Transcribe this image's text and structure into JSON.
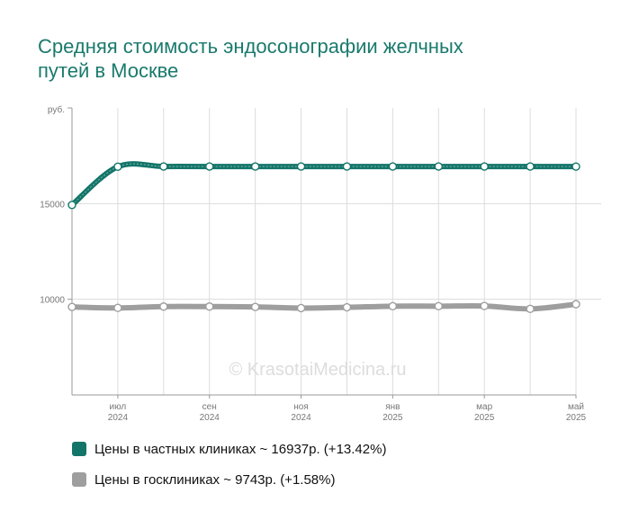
{
  "header": {
    "title_line1": "Средняя стоимость эндосонографии желчных",
    "title_line2": "путей в Москве"
  },
  "watermark": "© KrasotaiMedicina.ru",
  "colors": {
    "private": "#137569",
    "public": "#9e9e9e",
    "title": "#1a7a6d"
  },
  "legend": [
    {
      "label": "Цены в частных клиниках ~ 16937р. (+13.42%)",
      "color": "#137569"
    },
    {
      "label": "Цены в госклиниках ~ 9743р. (+1.58%)",
      "color": "#9e9e9e"
    }
  ],
  "chart_data": {
    "type": "line",
    "ylabel": "руб.",
    "ylim": [
      5000,
      20000
    ],
    "yticks": [
      15000,
      10000
    ],
    "grid": true,
    "x": [
      "2024-06",
      "2024-07",
      "2024-08",
      "2024-09",
      "2024-10",
      "2024-11",
      "2024-12",
      "2025-01",
      "2025-02",
      "2025-03",
      "2025-04",
      "2025-05"
    ],
    "xtick_labels": [
      {
        "month": "июл",
        "year": "2024",
        "index": 1
      },
      {
        "month": "сен",
        "year": "2024",
        "index": 3
      },
      {
        "month": "ноя",
        "year": "2024",
        "index": 5
      },
      {
        "month": "янв",
        "year": "2025",
        "index": 7
      },
      {
        "month": "мар",
        "year": "2025",
        "index": 9
      },
      {
        "month": "май",
        "year": "2025",
        "index": 11
      }
    ],
    "series": [
      {
        "name": "Цены в частных клиниках",
        "values": [
          14930,
          16930,
          16940,
          16940,
          16940,
          16940,
          16940,
          16940,
          16940,
          16940,
          16940,
          16937
        ]
      },
      {
        "name": "Цены в госклиниках",
        "values": [
          9600,
          9550,
          9620,
          9620,
          9600,
          9540,
          9580,
          9640,
          9640,
          9650,
          9500,
          9743
        ]
      }
    ]
  }
}
